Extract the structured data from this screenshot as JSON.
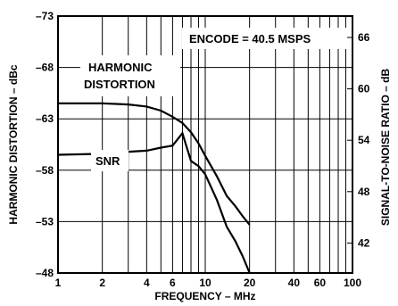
{
  "chart_data": {
    "type": "line",
    "x_scale": "log",
    "xlim": [
      1,
      100
    ],
    "x_ticks": [
      1,
      2,
      4,
      6,
      10,
      20,
      40,
      60,
      100
    ],
    "x_tick_labels": [
      "1",
      "2",
      "4",
      "6",
      "10",
      "20",
      "40",
      "60",
      "100"
    ],
    "x_gridlines": [
      1,
      2,
      3,
      4,
      5,
      6,
      7,
      8,
      9,
      10,
      20,
      30,
      40,
      50,
      60,
      70,
      80,
      90,
      100
    ],
    "xlabel": "FREQUENCY – MHz",
    "y_left": {
      "label": "HARMONIC DISTORTION – dBc",
      "range": [
        -73,
        -48
      ],
      "ticks": [
        -73,
        -68,
        -63,
        -58,
        -53,
        -48
      ],
      "tick_labels": [
        "–73",
        "–68",
        "–63",
        "–58",
        "–53",
        "–48"
      ]
    },
    "y_right": {
      "label": "SIGNAL-TO-NOISE RATIO – dB",
      "range": [
        38.5,
        68.5
      ],
      "ticks": [
        66,
        60,
        54,
        48,
        42
      ],
      "tick_labels": [
        "66",
        "60",
        "54",
        "48",
        "42"
      ]
    },
    "grid": true,
    "annotations": {
      "encode": "ENCODE = 40.5 MSPS",
      "harmonic_line1": "HARMONIC",
      "harmonic_line2": "DISTORTION",
      "snr": "SNR"
    },
    "series": [
      {
        "name": "HARMONIC DISTORTION",
        "axis": "left",
        "x": [
          1,
          2,
          3,
          4,
          5,
          6,
          7,
          8,
          9,
          10,
          12,
          14,
          16,
          18,
          20
        ],
        "y": [
          -64.5,
          -64.5,
          -64.4,
          -64.2,
          -63.8,
          -63.2,
          -62.6,
          -61.7,
          -60.6,
          -59.4,
          -57.4,
          -55.5,
          -54.5,
          -53.5,
          -52.7
        ]
      },
      {
        "name": "SNR",
        "axis": "left",
        "x": [
          1,
          2,
          3,
          4,
          5,
          6,
          7,
          8,
          9,
          10,
          12,
          14,
          16,
          18,
          20
        ],
        "y": [
          -59.5,
          -59.6,
          -59.8,
          -59.9,
          -60.2,
          -60.4,
          -61.6,
          -58.9,
          -58.4,
          -57.6,
          -55.1,
          -52.5,
          -51.1,
          -49.6,
          -48.0
        ]
      }
    ]
  }
}
